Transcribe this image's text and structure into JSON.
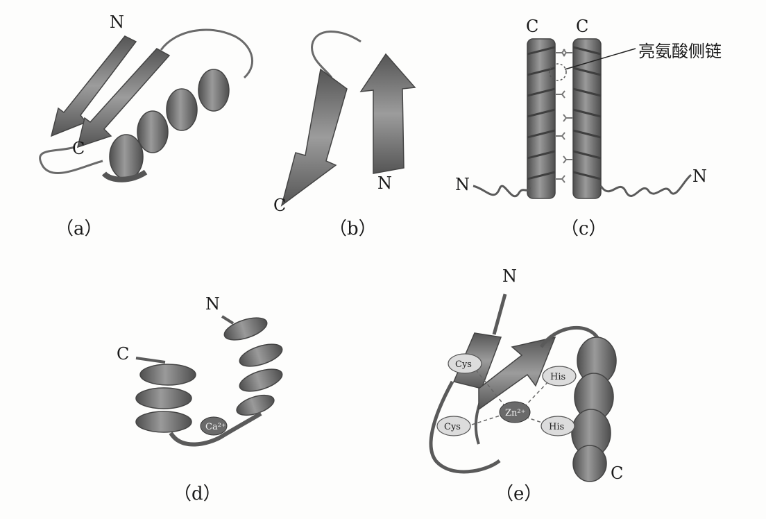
{
  "panels": {
    "a": {
      "caption": "（a）",
      "n": "N",
      "c": "C"
    },
    "b": {
      "caption": "（b）",
      "n": "N",
      "c": "C"
    },
    "c": {
      "caption": "（c）",
      "n_left": "N",
      "n_right": "N",
      "c_left": "C",
      "c_right": "C",
      "leucine_label": "亮氨酸侧链"
    },
    "d": {
      "caption": "（d）",
      "n": "N",
      "c": "C",
      "ion": "Ca²⁺"
    },
    "e": {
      "caption": "（e）",
      "n": "N",
      "c": "C",
      "cys_top": "Cys",
      "cys_bottom": "Cys",
      "his_top": "His",
      "his_bottom": "His",
      "ion": "Zn²⁺"
    }
  },
  "colors": {
    "ribbon_dark": "#5d5d5d",
    "ribbon_mid": "#7a7a7a",
    "ribbon_light": "#b4b4b4",
    "ink": "#1a1a1a"
  }
}
